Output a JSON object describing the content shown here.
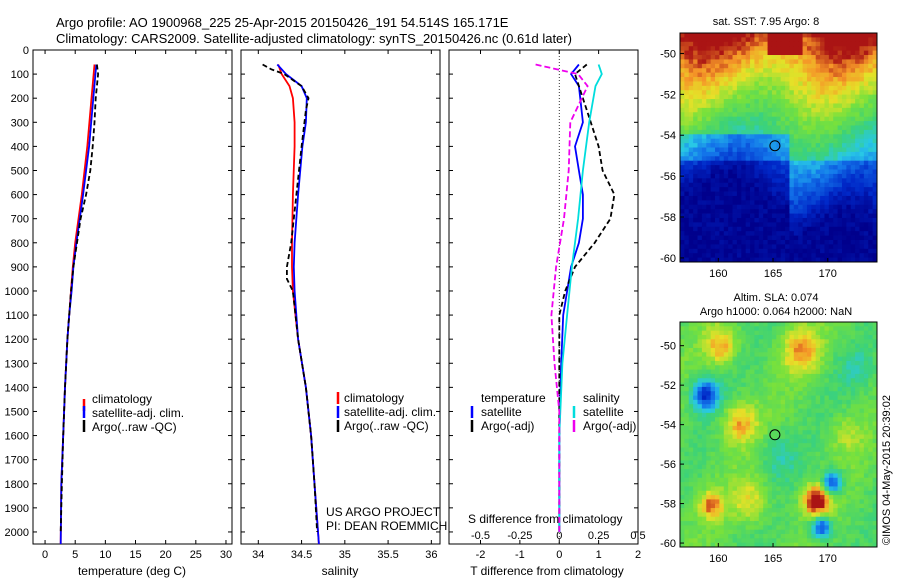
{
  "header": {
    "line1": "Argo profile: AO 1900968_225 25-Apr-2015 20150426_191 54.514S 165.171E",
    "line2": "Climatology: CARS2009. Satellite-adjusted climatology: synTS_20150426.nc (0.61d later)"
  },
  "colors": {
    "climatology": "#ff0000",
    "satellite": "#0000ff",
    "argo": "#000000",
    "sal_satellite": "#00dddd",
    "sal_argo": "#ee00ee"
  },
  "credits": {
    "project": "US ARGO PROJECT",
    "pi": "PI: DEAN ROEMMICH",
    "imos": "©IMOS 04-May-2015 20:39:02"
  },
  "chart_data": [
    {
      "type": "line",
      "id": "temperature-profile",
      "xlabel": "temperature (deg C)",
      "xlim": [
        -2,
        31
      ],
      "xticks": [
        0,
        5,
        10,
        15,
        20,
        25,
        30
      ],
      "ylim": [
        2050,
        0
      ],
      "yticks": [
        0,
        100,
        200,
        300,
        400,
        500,
        600,
        700,
        800,
        900,
        1000,
        1100,
        1200,
        1300,
        1400,
        1500,
        1600,
        1700,
        1800,
        1900,
        2000
      ],
      "legend": [
        "climatology",
        "satellite-adj. clim.",
        "Argo(..raw -QC)"
      ],
      "series": [
        {
          "name": "climatology",
          "color": "#ff0000",
          "dash": "",
          "depth": [
            60,
            200,
            400,
            600,
            800,
            900,
            1000,
            1100,
            1200,
            1400,
            1600,
            1800,
            2050
          ],
          "values": [
            8.2,
            7.7,
            7.0,
            6.1,
            5.0,
            4.6,
            4.3,
            4.0,
            3.7,
            3.3,
            3.0,
            2.7,
            2.6
          ]
        },
        {
          "name": "satellite-adj. clim.",
          "color": "#0000ff",
          "dash": "",
          "depth": [
            60,
            200,
            400,
            600,
            800,
            900,
            1000,
            1100,
            1200,
            1400,
            1600,
            1800,
            2050
          ],
          "values": [
            8.5,
            8.0,
            7.3,
            6.3,
            5.2,
            4.7,
            4.4,
            4.0,
            3.7,
            3.3,
            3.0,
            2.7,
            2.6
          ]
        },
        {
          "name": "Argo(..raw -QC)",
          "color": "#000000",
          "dash": "5,3",
          "depth": [
            60,
            100,
            200,
            300,
            400,
            500,
            600,
            700,
            800,
            900,
            1000,
            1200,
            1400,
            1600,
            1800,
            2000
          ],
          "values": [
            8.6,
            8.8,
            8.4,
            8.2,
            7.9,
            7.5,
            6.8,
            5.9,
            5.3,
            4.7,
            4.3,
            3.7,
            3.3,
            3.0,
            2.8,
            2.6
          ]
        }
      ]
    },
    {
      "type": "line",
      "id": "salinity-profile",
      "xlabel": "salinity",
      "xlim": [
        33.8,
        36.1
      ],
      "xticks": [
        34,
        34.5,
        35,
        35.5,
        36
      ],
      "ylim": [
        2050,
        0
      ],
      "legend": [
        "climatology",
        "satellite-adj. clim.",
        "Argo(..raw -QC)"
      ],
      "series": [
        {
          "name": "climatology",
          "color": "#ff0000",
          "dash": "",
          "depth": [
            60,
            100,
            150,
            200,
            300,
            400,
            600,
            800,
            900,
            1000,
            1200,
            1400,
            1600,
            1800,
            2050
          ],
          "values": [
            34.23,
            34.27,
            34.36,
            34.4,
            34.42,
            34.42,
            34.4,
            34.39,
            34.39,
            34.4,
            34.46,
            34.55,
            34.61,
            34.65,
            34.7
          ]
        },
        {
          "name": "satellite-adj. clim.",
          "color": "#0000ff",
          "dash": "",
          "depth": [
            60,
            100,
            150,
            200,
            300,
            400,
            600,
            800,
            900,
            1000,
            1200,
            1400,
            1600,
            1800,
            2050
          ],
          "values": [
            34.22,
            34.32,
            34.5,
            34.56,
            34.55,
            34.51,
            34.46,
            34.42,
            34.41,
            34.42,
            34.46,
            34.55,
            34.61,
            34.65,
            34.7
          ]
        },
        {
          "name": "Argo(..raw -QC)",
          "color": "#000000",
          "dash": "5,3",
          "depth": [
            60,
            80,
            100,
            150,
            200,
            250,
            400,
            600,
            800,
            900,
            950,
            1000,
            1200,
            1400,
            1600,
            1800,
            2000
          ],
          "values": [
            34.05,
            34.15,
            34.3,
            34.5,
            34.58,
            34.55,
            34.5,
            34.44,
            34.38,
            34.33,
            34.33,
            34.4,
            34.46,
            34.55,
            34.61,
            34.65,
            34.68
          ]
        }
      ]
    },
    {
      "type": "line",
      "id": "difference-profile",
      "xlabel": "T difference from climatology",
      "top_label": "S difference from climatology",
      "xlim": [
        -2.8,
        2.0
      ],
      "xticks": [
        -2,
        -1,
        0,
        1,
        2
      ],
      "sticks": [
        -0.5,
        -0.25,
        0,
        0.25,
        0.5
      ],
      "stick_labels": [
        "-0.5",
        "-0.25",
        "0",
        "0.25",
        "0.5"
      ],
      "ylim": [
        2050,
        0
      ],
      "legend": [
        "temperature",
        "satellite",
        "Argo(-adj)",
        "salinity",
        "satellite",
        "Argo(-adj)"
      ],
      "series": [
        {
          "name": "temperature satellite",
          "color": "#0000ff",
          "dash": "",
          "depth": [
            60,
            100,
            150,
            300,
            400,
            500,
            600,
            700,
            800,
            900,
            1100,
            1300,
            1600,
            2000
          ],
          "values": [
            0.5,
            0.3,
            0.5,
            0.6,
            0.4,
            0.5,
            0.6,
            0.6,
            0.5,
            0.3,
            0.1,
            0.05,
            0.0,
            0.0
          ]
        },
        {
          "name": "temperature Argo(-adj)",
          "color": "#000000",
          "dash": "5,3",
          "depth": [
            60,
            100,
            150,
            300,
            400,
            500,
            600,
            700,
            800,
            900,
            1000,
            1100,
            1300,
            1600,
            2000
          ],
          "values": [
            0.7,
            0.4,
            0.5,
            0.8,
            1.0,
            1.1,
            1.4,
            1.3,
            0.9,
            0.4,
            0.15,
            0.0,
            0.0,
            0.0,
            0.0
          ]
        },
        {
          "name": "salinity satellite",
          "color": "#00dddd",
          "dash": "",
          "depth": [
            60,
            100,
            150,
            300,
            500,
            700,
            900,
            1100,
            1300,
            1600,
            2000
          ],
          "values": [
            0.25,
            0.27,
            0.23,
            0.19,
            0.15,
            0.12,
            0.08,
            0.05,
            0.02,
            0.0,
            0.0
          ]
        },
        {
          "name": "salinity Argo(-adj)",
          "color": "#ee00ee",
          "dash": "6,3",
          "depth": [
            60,
            100,
            150,
            300,
            500,
            700,
            900,
            1100,
            1300,
            1500,
            2000
          ],
          "values": [
            -0.15,
            0.12,
            0.18,
            0.07,
            0.06,
            0.03,
            -0.02,
            -0.05,
            -0.03,
            0.0,
            0.0
          ]
        }
      ]
    }
  ],
  "maps": [
    {
      "id": "sst-map",
      "title": "sat. SST: 7.95 Argo: 8",
      "lon_range": [
        156.5,
        174.5
      ],
      "lat_range": [
        -60.2,
        -49.0
      ],
      "xticks": [
        160,
        165,
        170
      ],
      "yticks": [
        -50,
        -52,
        -54,
        -56,
        -58,
        -60
      ],
      "argo_marker": {
        "lon": 165.171,
        "lat": -54.514
      }
    },
    {
      "id": "sla-map",
      "title_line1": "Altim. SLA: 0.074",
      "title_line2": "Argo h1000: 0.064 h2000: NaN",
      "lon_range": [
        156.5,
        174.5
      ],
      "lat_range": [
        -60.2,
        -48.8
      ],
      "xticks": [
        160,
        165,
        170
      ],
      "yticks": [
        -50,
        -52,
        -54,
        -56,
        -58,
        -60
      ],
      "argo_marker": {
        "lon": 165.171,
        "lat": -54.514
      }
    }
  ]
}
